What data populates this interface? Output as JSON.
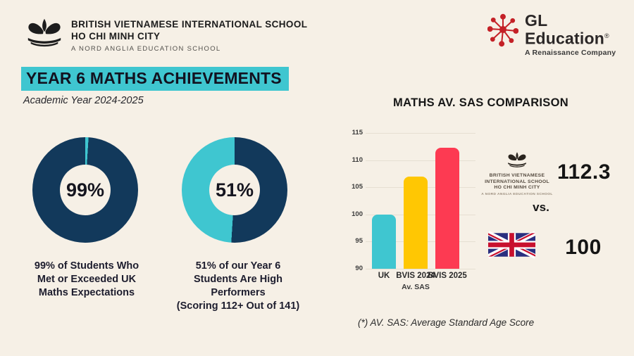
{
  "colors": {
    "background": "#F6F0E6",
    "navy": "#12395B",
    "cyan": "#3FC6D0",
    "yellow": "#FFC703",
    "red": "#FD3A52",
    "gridline": "#E6DFD2",
    "gl_red": "#C42127",
    "title_highlight": "#3FC6D0"
  },
  "header": {
    "school": {
      "line1": "BRITISH VIETNAMESE INTERNATIONAL SCHOOL",
      "line2": "HO CHI MINH CITY",
      "tagline": "A NORD ANGLIA EDUCATION SCHOOL"
    },
    "gl": {
      "line1": "GL",
      "line2": "Education",
      "registered": "®",
      "tagline": "A Renaissance Company"
    }
  },
  "title": "YEAR 6 MATHS ACHIEVEMENTS",
  "subtitle": "Academic Year 2024-2025",
  "chart_data": [
    {
      "type": "pie",
      "subtype": "donut",
      "label": "99%",
      "slices": [
        {
          "name": "remainder",
          "value": 1,
          "color": "#3FC6D0"
        },
        {
          "name": "met-or-exceeded",
          "value": 99,
          "color": "#12395B"
        }
      ],
      "caption_lines": [
        "99% of Students Who",
        "Met or Exceeded UK",
        "Maths Expectations"
      ]
    },
    {
      "type": "pie",
      "subtype": "donut",
      "label": "51%",
      "slices": [
        {
          "name": "high-performers",
          "value": 51,
          "color": "#12395B"
        },
        {
          "name": "remainder",
          "value": 49,
          "color": "#3FC6D0"
        }
      ],
      "caption_lines": [
        "51% of our Year 6",
        "Students Are High",
        "Performers",
        "(Scoring 112+ Out of 141)"
      ]
    },
    {
      "type": "bar",
      "title": "MATHS AV. SAS COMPARISON",
      "categories": [
        "UK",
        "BVIS 2024",
        "BVIS 2025"
      ],
      "values": [
        100,
        107,
        112.3
      ],
      "colors": [
        "#3FC6D0",
        "#FFC703",
        "#FD3A52"
      ],
      "xlabel": "Av. SAS",
      "ylabel": "",
      "ylim": [
        90,
        115
      ],
      "yticks": [
        115,
        110,
        105,
        100,
        95,
        90
      ],
      "grid": true,
      "legend": false
    }
  ],
  "comparison": {
    "bvis": {
      "name_lines": [
        "BRITISH VIETNAMESE",
        "INTERNATIONAL SCHOOL",
        "HO CHI MINH CITY"
      ],
      "tagline": "A NORD ANGLIA EDUCATION SCHOOL",
      "score": "112.3"
    },
    "versus": "vs.",
    "uk": {
      "score": "100"
    }
  },
  "footnote": "(*) AV. SAS: Average Standard Age Score"
}
